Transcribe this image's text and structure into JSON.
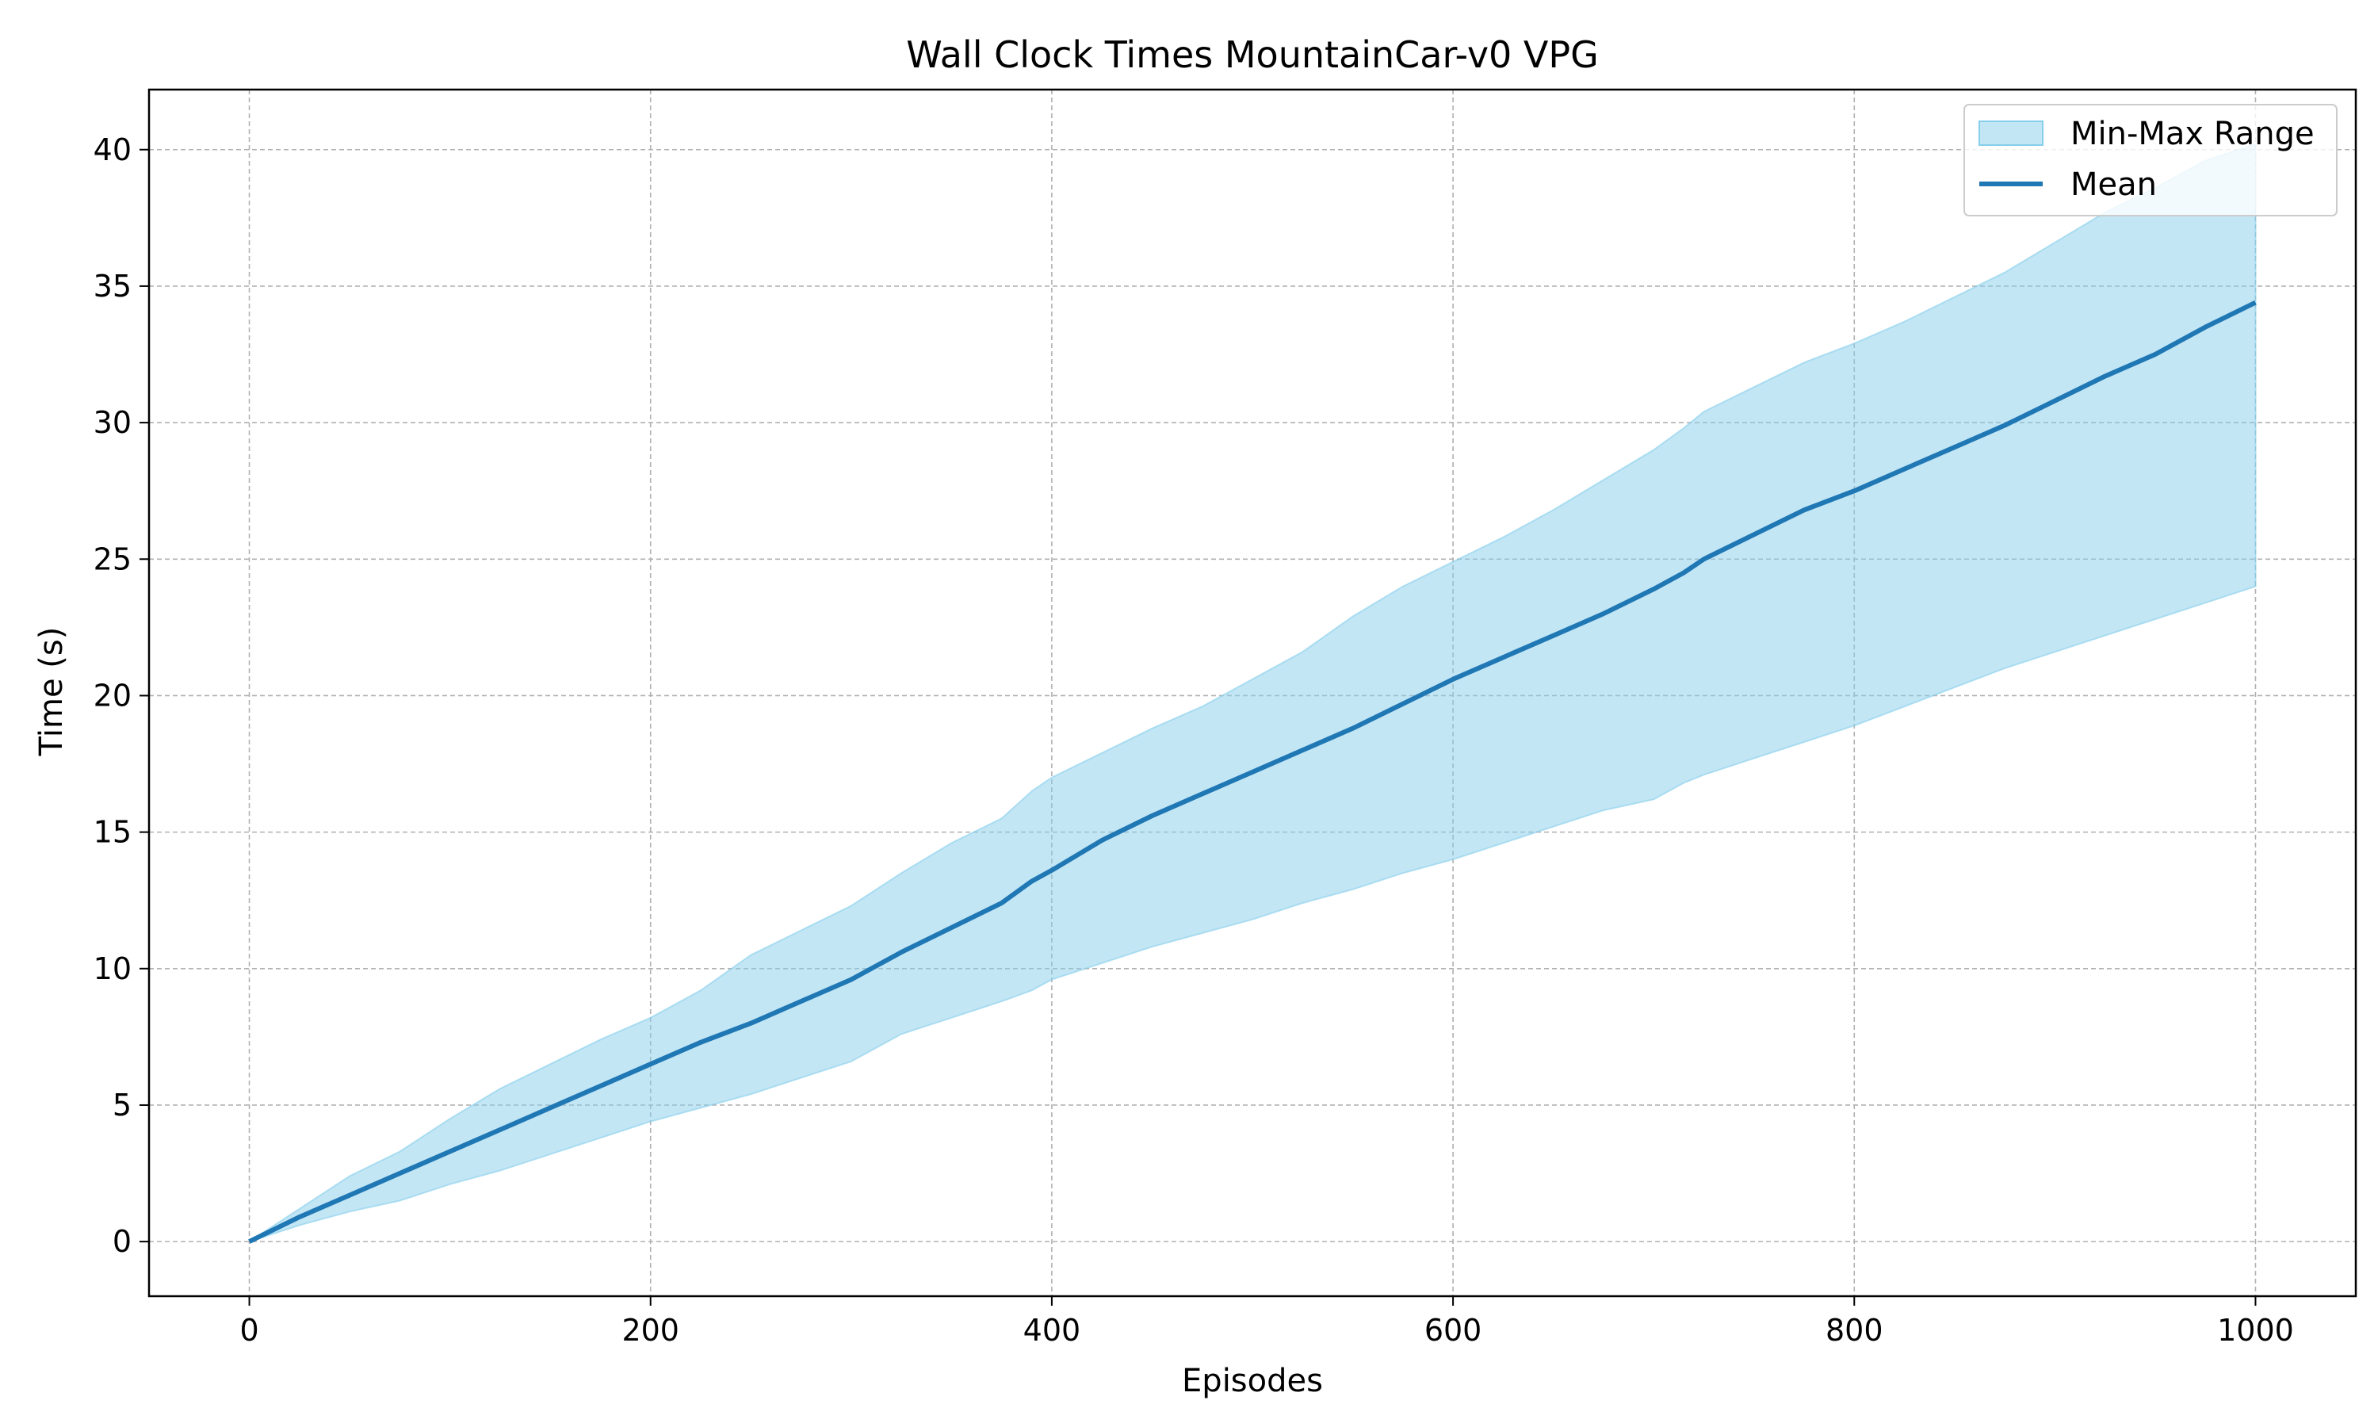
{
  "chart_data": {
    "type": "line",
    "title": "Wall Clock Times MountainCar-v0 VPG",
    "xlabel": "Episodes",
    "ylabel": "Time (s)",
    "xlim": [
      -50,
      1050
    ],
    "ylim": [
      -2,
      42.2
    ],
    "xticks": [
      0,
      200,
      400,
      600,
      800,
      1000
    ],
    "yticks": [
      0,
      5,
      10,
      15,
      20,
      25,
      30,
      35,
      40
    ],
    "grid": true,
    "legend_position": "top-right",
    "colors": {
      "mean": "#1f77b4",
      "band": "#87ceeb"
    },
    "x": [
      0,
      25,
      50,
      75,
      100,
      125,
      150,
      175,
      200,
      225,
      250,
      275,
      300,
      325,
      350,
      375,
      390,
      400,
      425,
      450,
      475,
      500,
      525,
      550,
      575,
      600,
      625,
      650,
      675,
      700,
      715,
      725,
      750,
      775,
      800,
      825,
      850,
      875,
      900,
      925,
      950,
      975,
      1000
    ],
    "series": [
      {
        "name": "Min-Max Range",
        "kind": "band",
        "lower": [
          0,
          0.6,
          1.1,
          1.5,
          2.1,
          2.6,
          3.2,
          3.8,
          4.4,
          4.9,
          5.4,
          6.0,
          6.6,
          7.6,
          8.2,
          8.8,
          9.2,
          9.6,
          10.2,
          10.8,
          11.3,
          11.8,
          12.4,
          12.9,
          13.5,
          14.0,
          14.6,
          15.2,
          15.8,
          16.2,
          16.8,
          17.1,
          17.7,
          18.3,
          18.9,
          19.6,
          20.3,
          21.0,
          21.6,
          22.2,
          22.8,
          23.4,
          24.0
        ],
        "upper": [
          0,
          1.2,
          2.4,
          3.3,
          4.5,
          5.6,
          6.5,
          7.4,
          8.2,
          9.2,
          10.5,
          11.4,
          12.3,
          13.5,
          14.6,
          15.5,
          16.5,
          17.0,
          17.9,
          18.8,
          19.6,
          20.6,
          21.6,
          22.9,
          24.0,
          24.9,
          25.8,
          26.8,
          27.9,
          29.0,
          29.8,
          30.4,
          31.3,
          32.2,
          32.9,
          33.7,
          34.6,
          35.5,
          36.6,
          37.7,
          38.6,
          39.6,
          40.2
        ]
      },
      {
        "name": "Mean",
        "kind": "line",
        "values": [
          0,
          0.9,
          1.7,
          2.5,
          3.3,
          4.1,
          4.9,
          5.7,
          6.5,
          7.3,
          8.0,
          8.8,
          9.6,
          10.6,
          11.5,
          12.4,
          13.2,
          13.6,
          14.7,
          15.6,
          16.4,
          17.2,
          18.0,
          18.8,
          19.7,
          20.6,
          21.4,
          22.2,
          23.0,
          23.9,
          24.5,
          25.0,
          25.9,
          26.8,
          27.5,
          28.3,
          29.1,
          29.9,
          30.8,
          31.7,
          32.5,
          33.5,
          34.4
        ]
      }
    ]
  }
}
